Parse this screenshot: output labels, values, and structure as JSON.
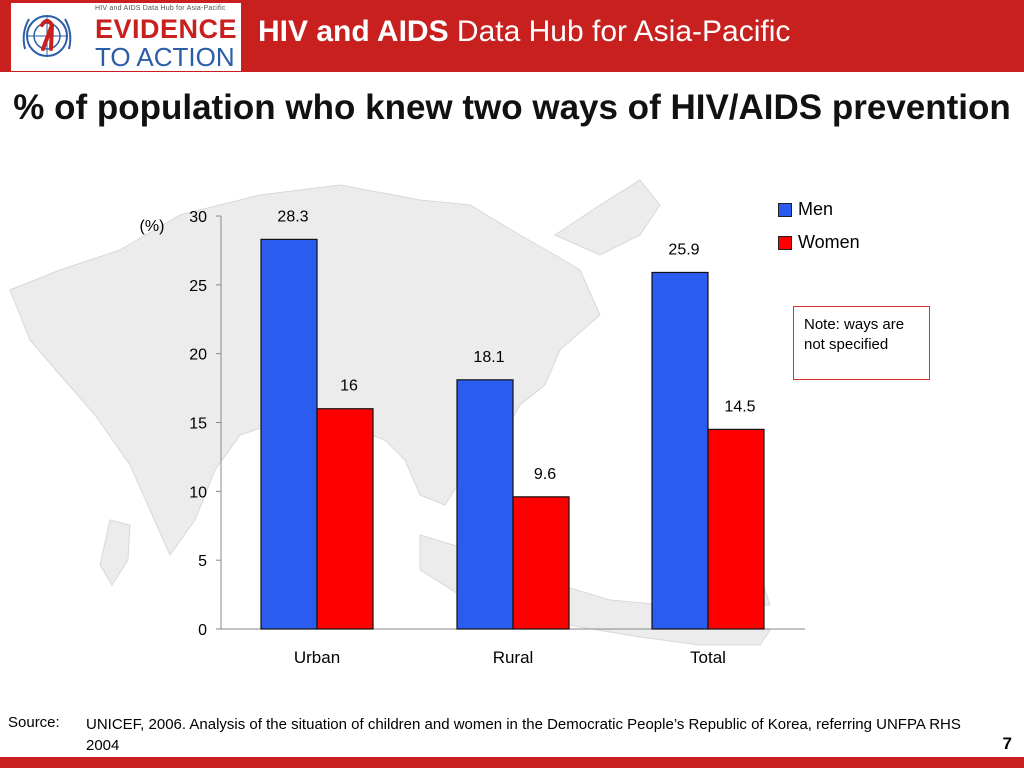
{
  "header": {
    "logo_small_text": "HIV and AIDS Data Hub for Asia-Pacific",
    "logo_line1": "EVIDENCE",
    "logo_line2": "TO ACTION",
    "title_bold": "HIV and AIDS",
    "title_rest": " Data Hub for Asia-Pacific"
  },
  "colors": {
    "brand_red": "#c8201f",
    "men": "#2b5cf0",
    "women": "#ff0000"
  },
  "chart_data": {
    "type": "bar",
    "title": "% of population who knew two ways of HIV/AIDS prevention",
    "ylabel": "(%)",
    "categories": [
      "Urban",
      "Rural",
      "Total"
    ],
    "series": [
      {
        "name": "Men",
        "values": [
          28.3,
          18.1,
          25.9
        ],
        "labels": [
          "28.3",
          "18.1",
          "25.9"
        ]
      },
      {
        "name": "Women",
        "values": [
          16,
          9.6,
          14.5
        ],
        "labels": [
          "16",
          "9.6",
          "14.5"
        ]
      }
    ],
    "ylim": [
      0,
      30
    ],
    "yticks": [
      0,
      5,
      10,
      15,
      20,
      25,
      30
    ],
    "grid": false,
    "legend": "right"
  },
  "note": "Note: ways are not specified",
  "source": {
    "label": "Source:",
    "text": "UNICEF, 2006. Analysis of the situation of children and women in the Democratic People’s Republic of Korea, referring UNFPA RHS 2004"
  },
  "page_number": "7"
}
